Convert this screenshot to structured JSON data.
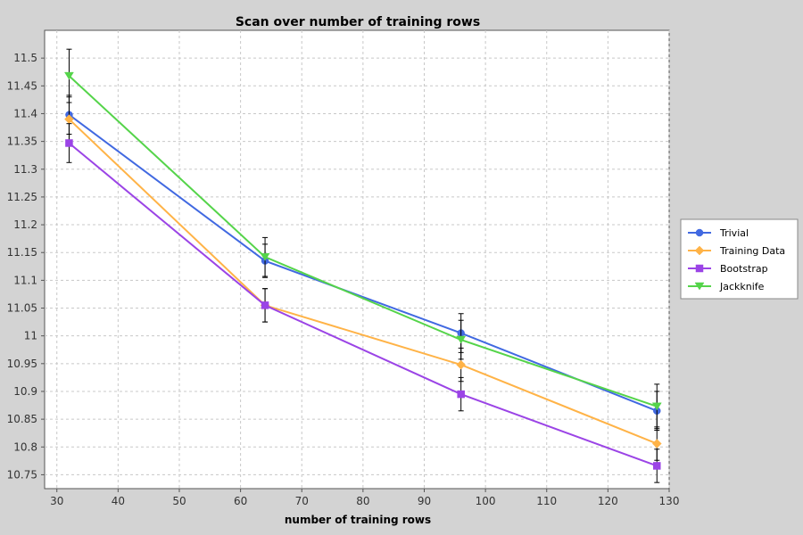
{
  "chart_data": {
    "type": "line",
    "title": "Scan over number of training rows",
    "xlabel": "number of training rows",
    "ylabel": "",
    "xlim": [
      28,
      130
    ],
    "ylim": [
      10.725,
      11.55
    ],
    "x_ticks": [
      30,
      40,
      50,
      60,
      70,
      80,
      90,
      100,
      110,
      120,
      130
    ],
    "y_ticks": [
      10.75,
      10.8,
      10.85,
      10.9,
      10.95,
      11,
      11.05,
      11.1,
      11.15,
      11.2,
      11.25,
      11.3,
      11.35,
      11.4,
      11.45,
      11.5
    ],
    "y_tick_labels": [
      "10.75",
      "10.8",
      "10.85",
      "10.9",
      "10.95",
      "11",
      "11.05",
      "11.1",
      "11.15",
      "11.2",
      "11.25",
      "11.3",
      "11.35",
      "11.4",
      "11.45",
      "11.5"
    ],
    "grid": true,
    "legend_position": "right",
    "x": [
      32,
      64,
      96,
      128
    ],
    "series": [
      {
        "name": "Trivial",
        "color": "#4169e1",
        "marker": "circle",
        "values": [
          11.398,
          11.135,
          11.005,
          10.865
        ],
        "errors": [
          0.035,
          0.03,
          0.035,
          0.035
        ]
      },
      {
        "name": "Training Data",
        "color": "#ffb347",
        "marker": "diamond",
        "values": [
          11.39,
          11.055,
          10.948,
          10.806
        ],
        "errors": [
          0.04,
          0.03,
          0.03,
          0.03
        ]
      },
      {
        "name": "Bootstrap",
        "color": "#9b44e6",
        "marker": "square",
        "values": [
          11.347,
          11.055,
          10.895,
          10.766
        ],
        "errors": [
          0.035,
          0.03,
          0.03,
          0.03
        ]
      },
      {
        "name": "Jackknife",
        "color": "#55d44a",
        "marker": "triangle-down",
        "values": [
          11.468,
          11.142,
          10.993,
          10.873
        ],
        "errors": [
          0.048,
          0.035,
          0.035,
          0.04
        ]
      }
    ]
  }
}
